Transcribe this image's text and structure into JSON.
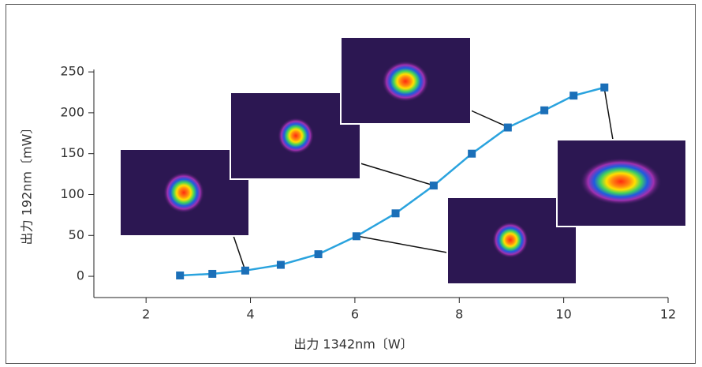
{
  "chart_data": {
    "type": "line",
    "x_label": "出力 1342nm〔W〕",
    "y_label": "出力 192nm〔mW〕",
    "x": [
      2.65,
      3.27,
      3.9,
      4.58,
      5.3,
      6.03,
      6.78,
      7.51,
      8.24,
      8.93,
      9.63,
      10.19,
      10.78
    ],
    "series": [
      {
        "color": "#2aa3de",
        "marker_color": "#1b6fb8",
        "values": [
          1,
          3,
          7,
          14,
          27,
          49,
          77,
          111,
          150,
          182,
          203,
          221,
          231
        ]
      }
    ],
    "xlim": [
      1,
      12
    ],
    "xticks": [
      2,
      4,
      6,
      8,
      10,
      12
    ],
    "ylim": [
      -26,
      253
    ],
    "yticks": [
      0,
      50,
      100,
      150,
      200,
      250
    ]
  }
}
